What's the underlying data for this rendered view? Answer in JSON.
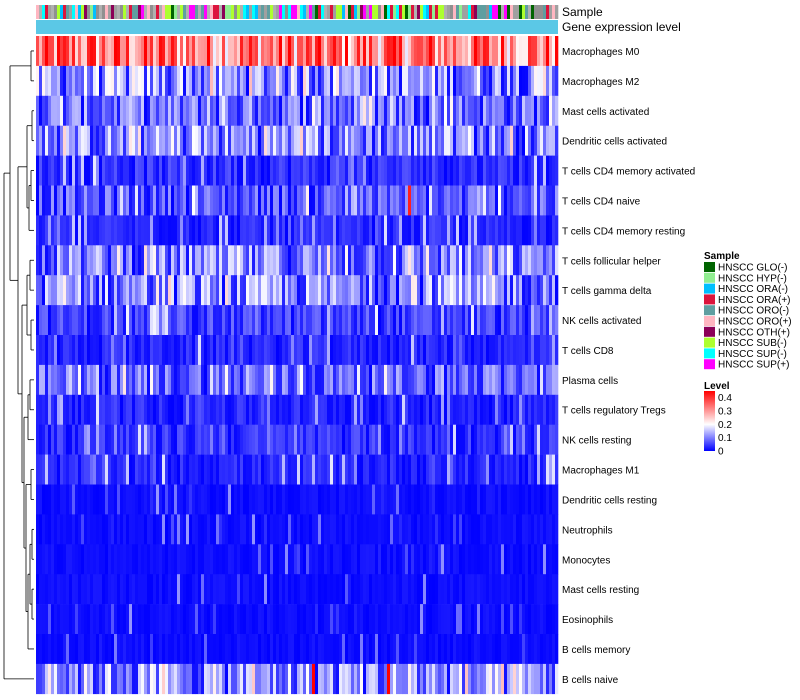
{
  "chart_data": {
    "type": "heatmap",
    "annotation_tracks": [
      "Sample",
      "Gene expression level"
    ],
    "rows": [
      "Macrophages M0",
      "Macrophages M2",
      "Mast cells activated",
      "Dendritic cells activated",
      "T cells CD4 memory activated",
      "T cells CD4 naive",
      "T cells CD4 memory resting",
      "T cells follicular helper",
      "T cells gamma delta",
      "NK cells activated",
      "T cells CD8",
      "Plasma cells",
      "T cells regulatory  Tregs",
      "NK cells resting",
      "Macrophages M1",
      "Dendritic cells resting",
      "Neutrophils",
      "Monocytes",
      "Mast cells resting",
      "Eosinophils",
      "B cells memory",
      "B cells naive"
    ],
    "row_mean_levels": [
      0.3,
      0.12,
      0.09,
      0.11,
      0.04,
      0.07,
      0.03,
      0.1,
      0.11,
      0.05,
      0.03,
      0.08,
      0.03,
      0.04,
      0.03,
      0.01,
      0.01,
      0.01,
      0.02,
      0.01,
      0.01,
      0.12
    ],
    "n_samples": 174,
    "color_scale": {
      "min": 0,
      "max": 0.45,
      "stops": [
        {
          "value": 0,
          "color": "#0000ff"
        },
        {
          "value": 0.2,
          "color": "#ffffff"
        },
        {
          "value": 0.45,
          "color": "#ff0000"
        }
      ]
    },
    "legend_sample": {
      "title": "Sample",
      "items": [
        {
          "label": "HNSCC GLO(-)",
          "color": "#006400"
        },
        {
          "label": "HNSCC HYP(-)",
          "color": "#90ee90"
        },
        {
          "label": "HNSCC ORA(-)",
          "color": "#00bfff"
        },
        {
          "label": "HNSCC ORA(+)",
          "color": "#dc143c"
        },
        {
          "label": "HNSCC ORO(-)",
          "color": "#5f9ea0"
        },
        {
          "label": "HNSCC ORO(+)",
          "color": "#ffb6c1"
        },
        {
          "label": "HNSCC OTH(+)",
          "color": "#8b0057"
        },
        {
          "label": "HNSCC SUB(-)",
          "color": "#adff2f"
        },
        {
          "label": "HNSCC SUP(-)",
          "color": "#00ffff"
        },
        {
          "label": "HNSCC SUP(+)",
          "color": "#ff00ff"
        }
      ]
    },
    "legend_level": {
      "title": "Level",
      "ticks": [
        "0.4",
        "0.3",
        "0.2",
        "0.1",
        "0"
      ],
      "tick_values": [
        0.4,
        0.3,
        0.2,
        0.1,
        0
      ]
    },
    "gene_expression_track_color": "#5bc8e6"
  }
}
